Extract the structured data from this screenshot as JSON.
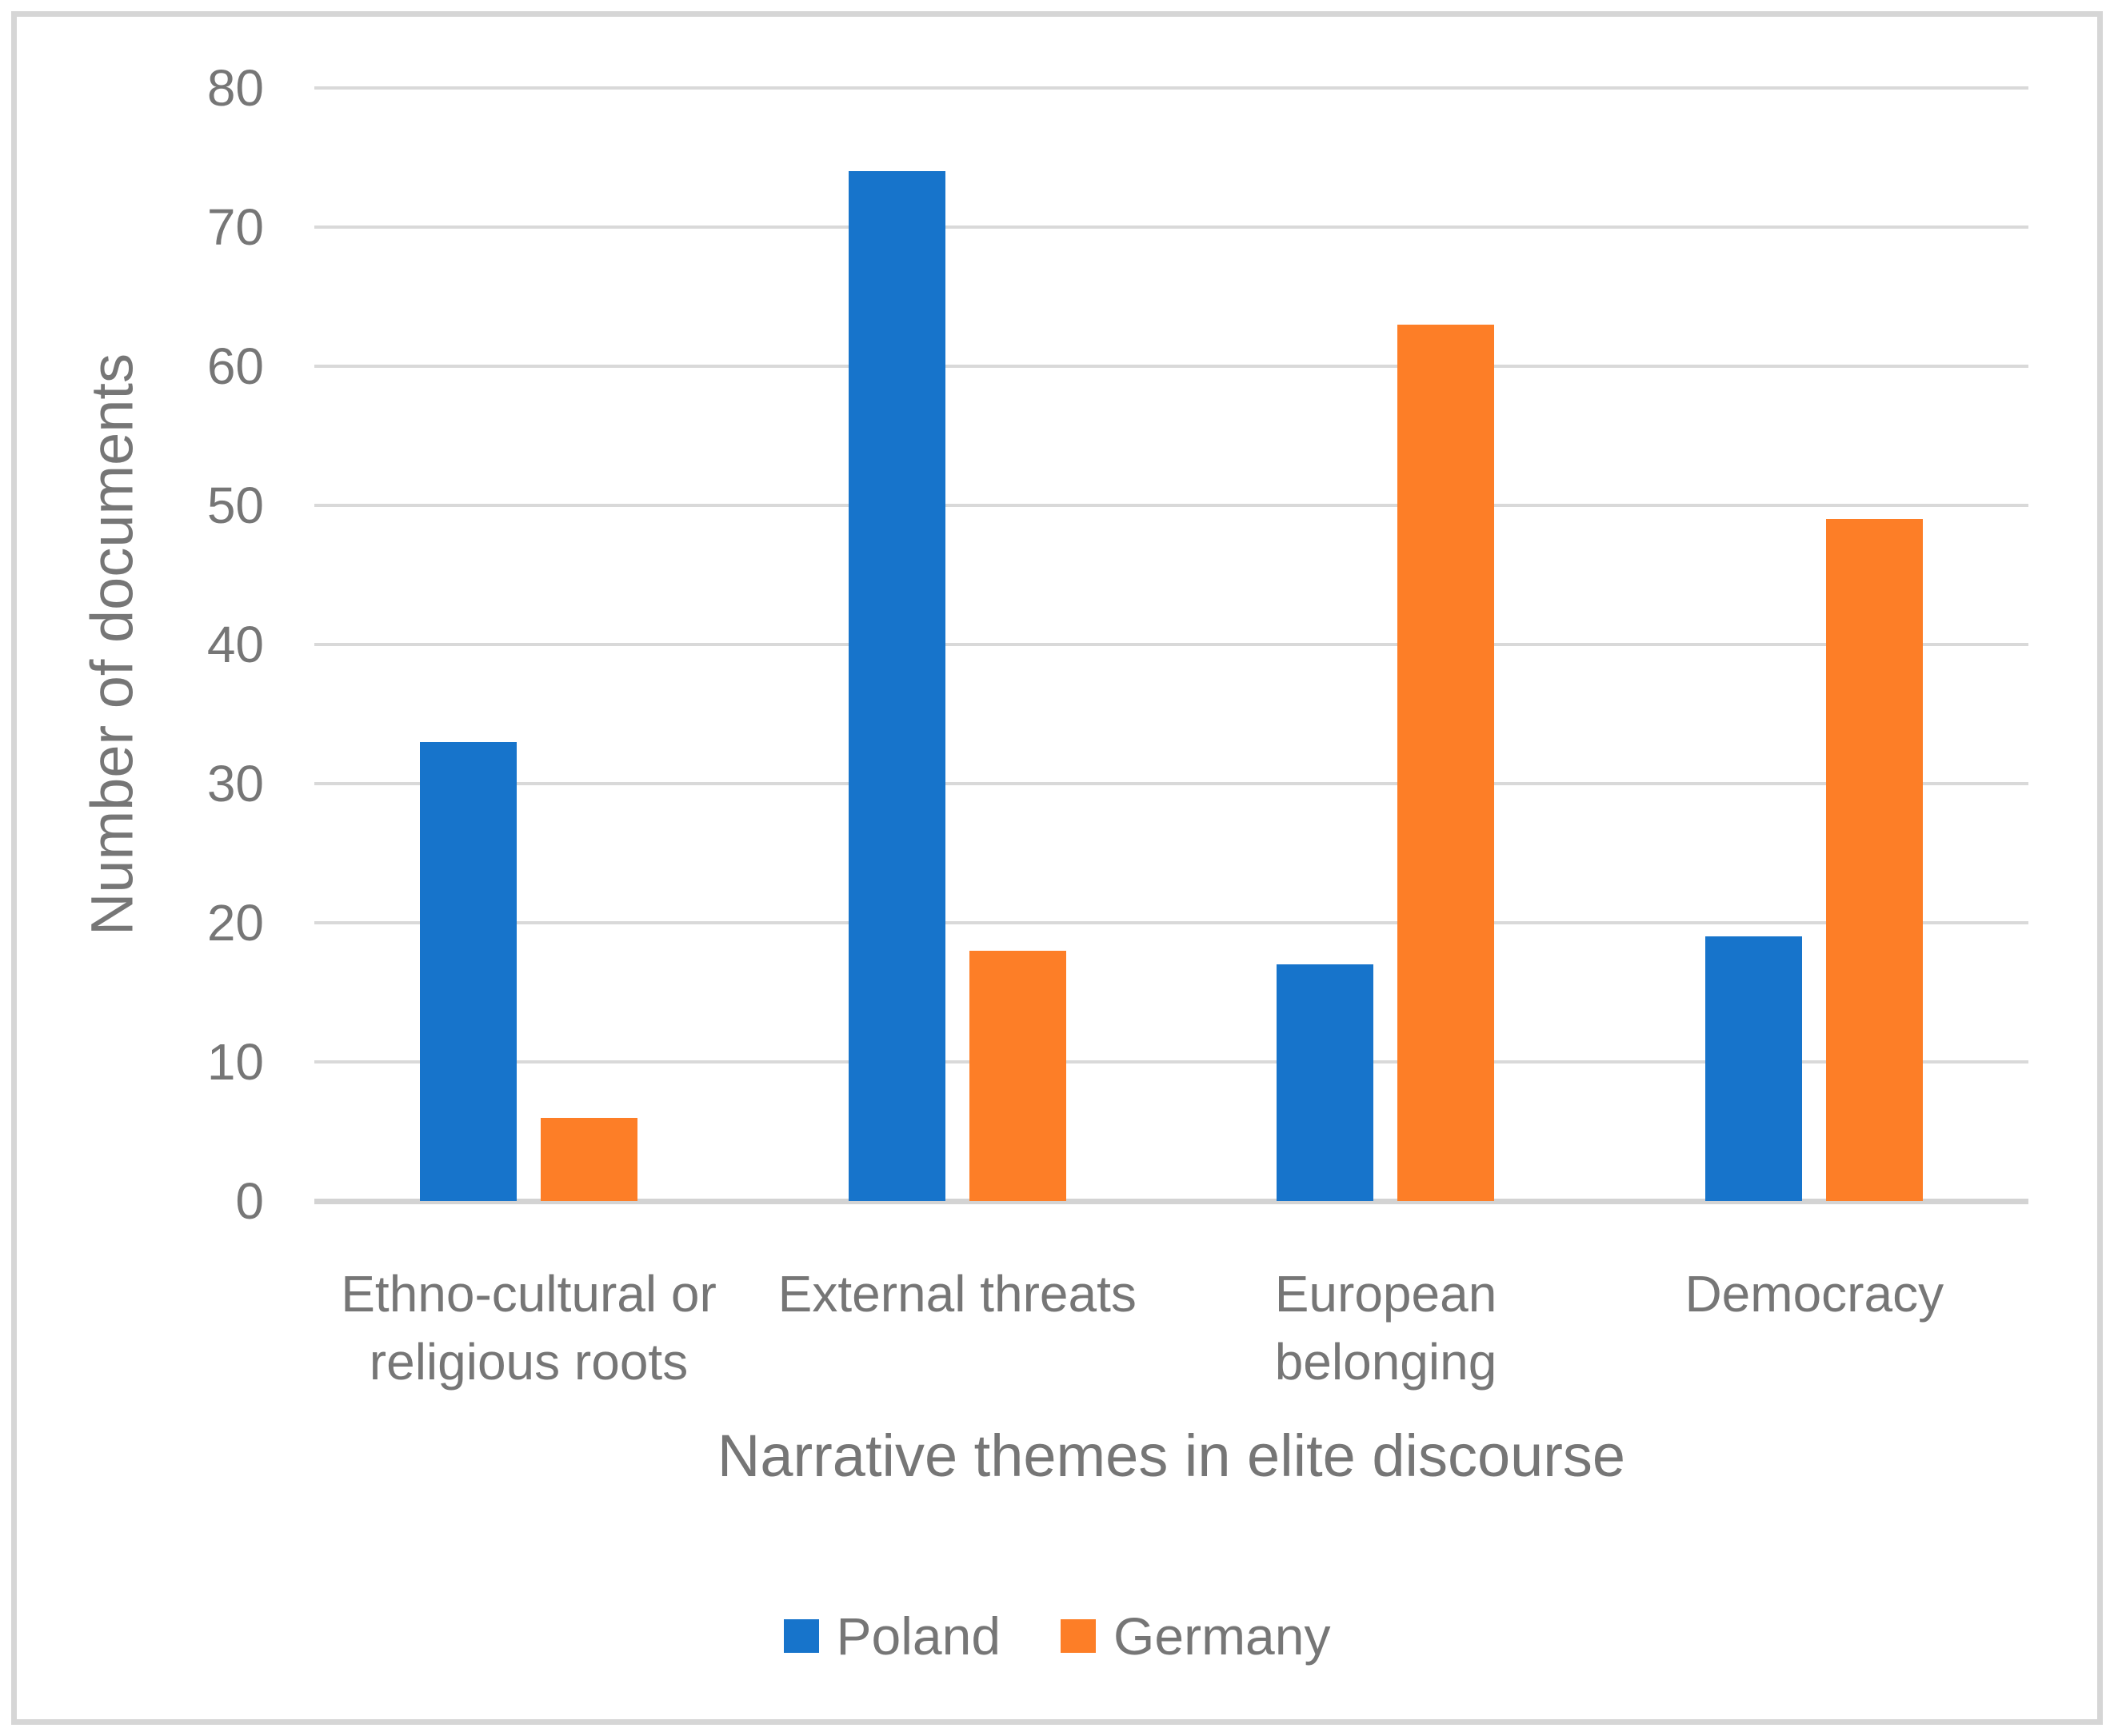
{
  "chart_data": {
    "type": "bar",
    "title": "",
    "categories": [
      "Ethno-cultural or religious roots",
      "External threats",
      "European belonging",
      "Democracy"
    ],
    "category_label_lines": [
      [
        "Ethno-cultural or",
        "religious roots"
      ],
      [
        "External threats"
      ],
      [
        "European",
        "belonging"
      ],
      [
        "Democracy"
      ]
    ],
    "series": [
      {
        "name": "Poland",
        "color": "#1774CB",
        "values": [
          33,
          74,
          17,
          19
        ]
      },
      {
        "name": "Germany",
        "color": "#FD7E27",
        "values": [
          6,
          18,
          63,
          49
        ]
      }
    ],
    "xlabel": "Narrative themes in elite discourse",
    "ylabel": "Number of documents",
    "ylim": [
      0,
      80
    ],
    "yticks": [
      0,
      10,
      20,
      30,
      40,
      50,
      60,
      70,
      80
    ],
    "grid": true,
    "legend_position": "bottom"
  },
  "style": {
    "text_color": "#767676",
    "gridline_color": "#D9D9D9",
    "axis_line_color": "#D3D3D3",
    "frame_color": "#D6D6D6",
    "background": "#FFFFFF"
  }
}
